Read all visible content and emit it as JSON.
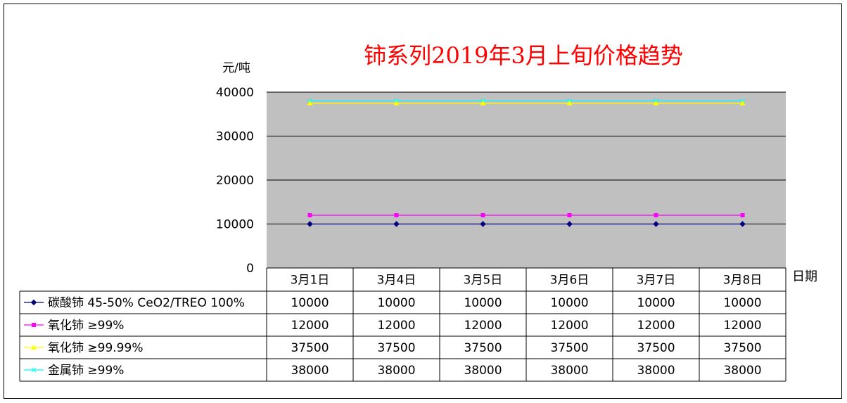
{
  "chart_data": {
    "type": "line",
    "title": "铈系列2019年3月上旬价格趋势",
    "ylabel": "元/吨",
    "xlabel": "日期",
    "ylim": [
      0,
      40000
    ],
    "yticks": [
      "40000",
      "30000",
      "20000",
      "10000",
      "0"
    ],
    "grid": true,
    "legend_placement": "table-left",
    "categories": [
      "3月1日",
      "3月4日",
      "3月5日",
      "3月6日",
      "3月7日",
      "3月8日"
    ],
    "series": [
      {
        "name": "碳酸铈 45-50% CeO2/TREO 100%",
        "values": [
          10000,
          10000,
          10000,
          10000,
          10000,
          10000
        ],
        "color": "#000080",
        "marker": "diamond"
      },
      {
        "name": "氧化铈 ≥99%",
        "values": [
          12000,
          12000,
          12000,
          12000,
          12000,
          12000
        ],
        "color": "#FF00FF",
        "marker": "square"
      },
      {
        "name": "氧化铈 ≥99.99%",
        "values": [
          37500,
          37500,
          37500,
          37500,
          37500,
          37500
        ],
        "color": "#FFFF00",
        "marker": "triangle"
      },
      {
        "name": "金属铈 ≥99%",
        "values": [
          38000,
          38000,
          38000,
          38000,
          38000,
          38000
        ],
        "color": "#00FFFF",
        "marker": "x"
      }
    ],
    "colors": {
      "title": "#FF0000",
      "plot_background": "#C0C0C0"
    }
  }
}
